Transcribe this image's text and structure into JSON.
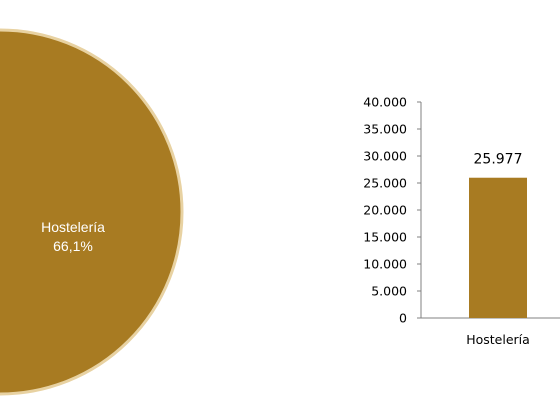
{
  "chart_data": [
    {
      "type": "pie",
      "title": "",
      "slices": [
        {
          "label": "Hostelería",
          "value": 66.1,
          "value_label": "66,1%"
        }
      ],
      "colors": {
        "slice": "#a87b22",
        "border": "#e8d2a2"
      }
    },
    {
      "type": "bar",
      "title": "",
      "xlabel": "",
      "ylabel": "",
      "categories": [
        "Hostelería"
      ],
      "values": [
        25977
      ],
      "value_labels": [
        "25.977"
      ],
      "ylim": [
        0,
        40000
      ],
      "yticks": [
        0,
        5000,
        10000,
        15000,
        20000,
        25000,
        30000,
        35000,
        40000
      ],
      "ytick_labels": [
        "0",
        "5.000",
        "10.000",
        "15.000",
        "20.000",
        "25.000",
        "30.000",
        "35.000",
        "40.000"
      ],
      "grid": false,
      "legend": "none",
      "colors": {
        "bar": "#a87b22",
        "axis": "#808080"
      }
    }
  ]
}
